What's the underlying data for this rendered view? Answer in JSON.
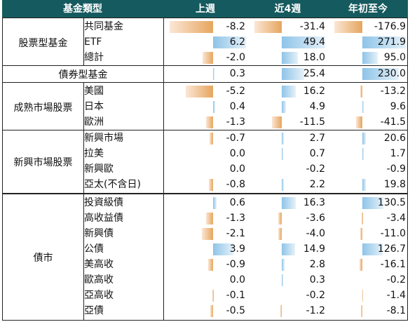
{
  "header": {
    "category": "基金類型",
    "col1": "上週",
    "col2": "近4週",
    "col3": "年初至今"
  },
  "groups": [
    {
      "label": "股票型基金",
      "rows": [
        {
          "label": "共同基金",
          "v": [
            "-8.2",
            "-31.4",
            "-176.9"
          ]
        },
        {
          "label": "ETF",
          "v": [
            "6.2",
            "49.4",
            "271.9"
          ]
        },
        {
          "label": "總計",
          "v": [
            "-2.0",
            "18.0",
            "95.0"
          ]
        }
      ]
    },
    {
      "label": "債券型基金",
      "rows": [
        {
          "label": "",
          "v": [
            "0.3",
            "25.4",
            "230.0"
          ]
        }
      ]
    },
    {
      "label": "成熟市場股票",
      "rows": [
        {
          "label": "美國",
          "v": [
            "-5.2",
            "16.2",
            "-13.2"
          ]
        },
        {
          "label": "日本",
          "v": [
            "0.4",
            "4.9",
            "9.6"
          ]
        },
        {
          "label": "歐洲",
          "v": [
            "-1.3",
            "-11.5",
            "-41.5"
          ]
        }
      ]
    },
    {
      "label": "新興市場股票",
      "rows": [
        {
          "label": "新興市場",
          "v": [
            "-0.7",
            "2.7",
            "20.6"
          ]
        },
        {
          "label": "拉美",
          "v": [
            "0.0",
            "0.7",
            "1.7"
          ]
        },
        {
          "label": "新興歐",
          "v": [
            "0.0",
            "-0.2",
            "-0.9"
          ]
        },
        {
          "label": "亞太(不含日)",
          "v": [
            "-0.8",
            "2.2",
            "19.8"
          ]
        }
      ]
    },
    {
      "label": "債市",
      "rows": [
        {
          "label": "投資級債",
          "v": [
            "0.6",
            "16.3",
            "130.5"
          ]
        },
        {
          "label": "高收益債",
          "v": [
            "-1.3",
            "-3.6",
            "-3.4"
          ]
        },
        {
          "label": "新興債",
          "v": [
            "-2.1",
            "-4.0",
            "-11.0"
          ]
        },
        {
          "label": "公債",
          "v": [
            "3.9",
            "14.9",
            "126.7"
          ]
        },
        {
          "label": "美高收",
          "v": [
            "-0.9",
            "2.8",
            "-16.1"
          ]
        },
        {
          "label": "歐高收",
          "v": [
            "0.0",
            "0.3",
            "-0.2"
          ]
        },
        {
          "label": "亞高收",
          "v": [
            "-0.1",
            "-0.2",
            "-1.4"
          ]
        },
        {
          "label": "亞債",
          "v": [
            "-0.5",
            "-1.2",
            "-8.1"
          ]
        }
      ]
    }
  ],
  "colors": {
    "header_bg": "#155a5e",
    "negative_bar": "#e6a55e",
    "positive_bar": "#8ec4e8"
  }
}
